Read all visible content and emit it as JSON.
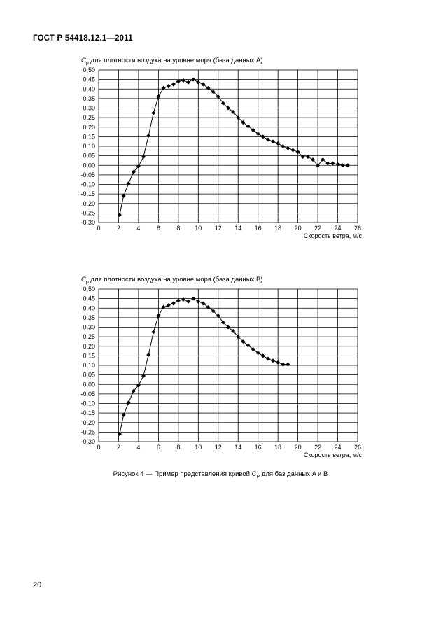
{
  "header": {
    "standard": "ГОСТ Р 54418.12.1—2011"
  },
  "caption": {
    "prefix": "Рисунок 4 — Пример представления кривой ",
    "symbol": "C",
    "subscript": "P",
    "suffix": " для баз данных A и B"
  },
  "page_number": "20",
  "chart_data": [
    {
      "type": "line",
      "title": {
        "symbol": "C",
        "subscript": "p",
        "text": " для плотности воздуха на уровне моря (база данных А)"
      },
      "xlabel": "Скорость ветра, м/с",
      "ylabel": "",
      "xlim": [
        0,
        26
      ],
      "ylim": [
        -0.3,
        0.5
      ],
      "xticks": [
        "0",
        "2",
        "4",
        "6",
        "8",
        "10",
        "12",
        "14",
        "16",
        "18",
        "20",
        "22",
        "24",
        "26"
      ],
      "yticks": [
        "0,50",
        "0,45",
        "0,40",
        "0,35",
        "0,30",
        "0,25",
        "0,20",
        "0,15",
        "0,10",
        "0,05",
        "0,00",
        "-0,05",
        "-0,10",
        "-0,15",
        "-0,20",
        "-0,25",
        "-0,30"
      ],
      "grid": true,
      "marker": "diamond",
      "series": [
        {
          "points": [
            [
              2.1,
              -0.26
            ],
            [
              2.5,
              -0.16
            ],
            [
              3.0,
              -0.095
            ],
            [
              3.5,
              -0.035
            ],
            [
              4.0,
              -0.005
            ],
            [
              4.5,
              0.045
            ],
            [
              5.0,
              0.155
            ],
            [
              5.5,
              0.275
            ],
            [
              6.0,
              0.36
            ],
            [
              6.5,
              0.405
            ],
            [
              7.0,
              0.415
            ],
            [
              7.5,
              0.425
            ],
            [
              8.0,
              0.44
            ],
            [
              8.5,
              0.445
            ],
            [
              9.0,
              0.435
            ],
            [
              9.5,
              0.45
            ],
            [
              10.0,
              0.435
            ],
            [
              10.5,
              0.425
            ],
            [
              11.0,
              0.405
            ],
            [
              11.5,
              0.385
            ],
            [
              12.0,
              0.36
            ],
            [
              12.5,
              0.325
            ],
            [
              13.0,
              0.3
            ],
            [
              13.5,
              0.28
            ],
            [
              14.0,
              0.25
            ],
            [
              14.5,
              0.225
            ],
            [
              15.0,
              0.205
            ],
            [
              15.5,
              0.185
            ],
            [
              16.0,
              0.165
            ],
            [
              16.5,
              0.15
            ],
            [
              17.0,
              0.135
            ],
            [
              17.5,
              0.125
            ],
            [
              18.0,
              0.115
            ],
            [
              18.5,
              0.1
            ],
            [
              19.0,
              0.09
            ],
            [
              19.5,
              0.08
            ],
            [
              20.0,
              0.07
            ],
            [
              20.5,
              0.045
            ],
            [
              21.0,
              0.045
            ],
            [
              21.5,
              0.03
            ],
            [
              22.0,
              0.0
            ],
            [
              22.5,
              0.03
            ],
            [
              23.0,
              0.01
            ],
            [
              23.5,
              0.01
            ],
            [
              24.0,
              0.005
            ],
            [
              24.5,
              0.0
            ],
            [
              25.0,
              0.0
            ]
          ]
        }
      ]
    },
    {
      "type": "line",
      "title": {
        "symbol": "C",
        "subscript": "p",
        "text": " для плотности воздуха на уровне моря (база данных B)"
      },
      "xlabel": "Скорость ветра, м/с",
      "ylabel": "",
      "xlim": [
        0,
        26
      ],
      "ylim": [
        -0.3,
        0.5
      ],
      "xticks": [
        "0",
        "2",
        "4",
        "6",
        "8",
        "10",
        "12",
        "14",
        "16",
        "18",
        "20",
        "22",
        "24",
        "26"
      ],
      "yticks": [
        "0,50",
        "0,45",
        "0,40",
        "0,35",
        "0,30",
        "0,25",
        "0,20",
        "0,15",
        "0,10",
        "0,05",
        "0,00",
        "-0,05",
        "-0,10",
        "-0,15",
        "-0,20",
        "-0,25",
        "-0,30"
      ],
      "grid": true,
      "marker": "diamond",
      "series": [
        {
          "points": [
            [
              2.1,
              -0.26
            ],
            [
              2.5,
              -0.16
            ],
            [
              3.0,
              -0.095
            ],
            [
              3.5,
              -0.035
            ],
            [
              4.0,
              -0.005
            ],
            [
              4.5,
              0.045
            ],
            [
              5.0,
              0.155
            ],
            [
              5.5,
              0.275
            ],
            [
              6.0,
              0.36
            ],
            [
              6.5,
              0.405
            ],
            [
              7.0,
              0.415
            ],
            [
              7.5,
              0.425
            ],
            [
              8.0,
              0.44
            ],
            [
              8.5,
              0.445
            ],
            [
              9.0,
              0.435
            ],
            [
              9.5,
              0.45
            ],
            [
              10.0,
              0.435
            ],
            [
              10.5,
              0.425
            ],
            [
              11.0,
              0.405
            ],
            [
              11.5,
              0.385
            ],
            [
              12.0,
              0.36
            ],
            [
              12.5,
              0.325
            ],
            [
              13.0,
              0.3
            ],
            [
              13.5,
              0.28
            ],
            [
              14.0,
              0.25
            ],
            [
              14.5,
              0.225
            ],
            [
              15.0,
              0.205
            ],
            [
              15.5,
              0.185
            ],
            [
              16.0,
              0.165
            ],
            [
              16.5,
              0.15
            ],
            [
              17.0,
              0.135
            ],
            [
              17.5,
              0.125
            ],
            [
              18.0,
              0.115
            ],
            [
              18.5,
              0.105
            ],
            [
              19.0,
              0.105
            ]
          ]
        }
      ]
    }
  ]
}
